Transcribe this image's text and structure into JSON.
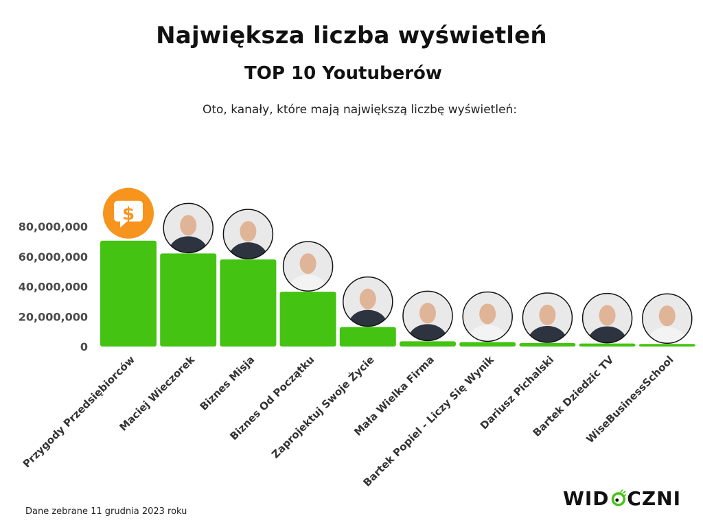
{
  "header": {
    "title": "Największa liczba wyświetleń",
    "subtitle": "TOP 10 Youtuberów",
    "lead": "Oto, kanały, które mają największą liczbę wyświetleń:"
  },
  "colors": {
    "bar": "#44c313",
    "channel_icon_orange": "#f7941d",
    "logo_green": "#44c313"
  },
  "chart_data": {
    "type": "bar",
    "title": "",
    "xlabel": "",
    "ylabel": "",
    "ylim": [
      0,
      85000000
    ],
    "yticks": [
      0,
      20000000,
      40000000,
      60000000,
      80000000
    ],
    "ytick_labels": [
      "0",
      "20,000,000",
      "40,000,000",
      "60,000,000",
      "80,000,000"
    ],
    "grid": false,
    "categories": [
      "Przygody Przedsiębiorców",
      "Maciej Wieczorek",
      "Biznes Misja",
      "Biznes Od Początku",
      "Zaprojektuj Swoje Życie",
      "Mała Wielka Firma",
      "Bartek Popiel - Liczy Się Wynik",
      "Dariusz Pichalski",
      "Bartek Dziedzic TV",
      "WiseBusinessSchool"
    ],
    "values": [
      70500000,
      62000000,
      58000000,
      36500000,
      13000000,
      3500000,
      3000000,
      2300000,
      2000000,
      1700000
    ],
    "avatars": [
      "dollar-chat-icon",
      "person",
      "person",
      "person",
      "person",
      "person",
      "person",
      "person",
      "person",
      "person"
    ]
  },
  "footer": {
    "note": "Dane zebrane 11 grudnia 2023 roku",
    "logo_left": "WID",
    "logo_right": "CZNI"
  }
}
